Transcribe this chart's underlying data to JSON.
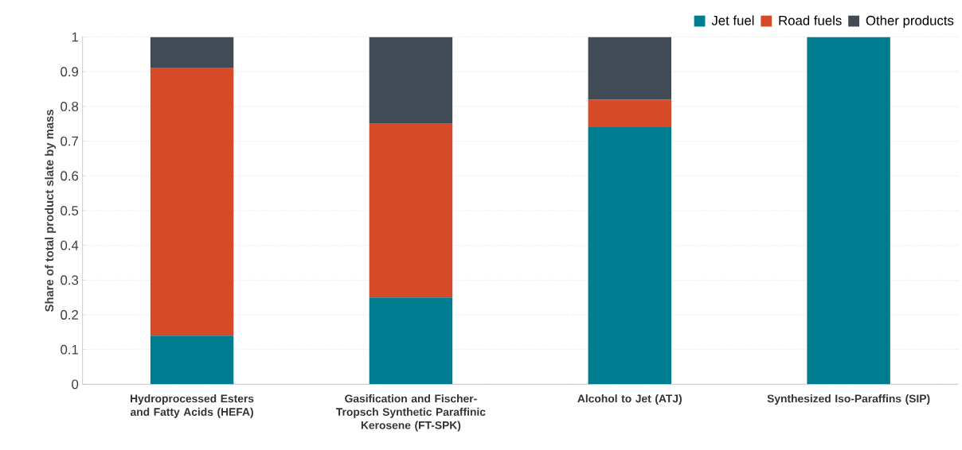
{
  "chart_data": {
    "type": "bar",
    "stacked": true,
    "ylabel": "Share of total product slate by mass",
    "categories": [
      "Hydroprocessed Esters and Fatty Acids (HEFA)",
      "Gasification and Fischer-Tropsch Synthetic Paraffinic Kerosene (FT-SPK)",
      "Alcohol to Jet (ATJ)",
      "Synthesized Iso-Paraffins (SIP)"
    ],
    "series": [
      {
        "name": "Jet fuel",
        "color": "#007c91",
        "values": [
          0.14,
          0.25,
          0.74,
          1
        ]
      },
      {
        "name": "Road fuels",
        "color": "#d64a27",
        "values": [
          0.77,
          0.5,
          0.08,
          0
        ]
      },
      {
        "name": "Other products",
        "color": "#404b55",
        "values": [
          0.09,
          0.25,
          0.18,
          0
        ]
      }
    ],
    "ylim": [
      0,
      1
    ],
    "yticks": [
      0,
      0.1,
      0.2,
      0.3,
      0.4,
      0.5,
      0.6,
      0.7,
      0.8,
      0.9,
      1
    ],
    "grid": "y",
    "legend": "top right"
  }
}
